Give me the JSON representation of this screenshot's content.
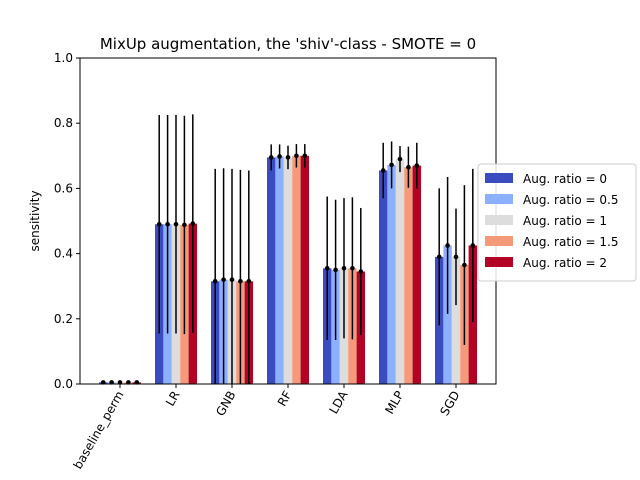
{
  "chart_data": {
    "type": "bar",
    "title": "MixUp augmentation, the 'shiv'-class - SMOTE = 0",
    "xlabel": "",
    "ylabel": "sensitivity",
    "ylim": [
      0,
      1.0
    ],
    "yticks": [
      "0.0",
      "0.2",
      "0.4",
      "0.6",
      "0.8",
      "1.0"
    ],
    "grid": false,
    "legend_position": "right (outside plot)",
    "categories": [
      "baseline_perm",
      "LR",
      "GNB",
      "RF",
      "LDA",
      "MLP",
      "SGD"
    ],
    "series": [
      {
        "name": "Aug. ratio = 0",
        "color": "#3b4cc0",
        "values": [
          0.005,
          0.49,
          0.315,
          0.695,
          0.355,
          0.655,
          0.39
        ],
        "errors": [
          0.002,
          0.335,
          0.345,
          0.04,
          0.22,
          0.085,
          0.21
        ]
      },
      {
        "name": "Aug. ratio = 0.5",
        "color": "#8db0fe",
        "values": [
          0.005,
          0.49,
          0.32,
          0.698,
          0.35,
          0.672,
          0.425
        ],
        "errors": [
          0.002,
          0.335,
          0.342,
          0.037,
          0.215,
          0.072,
          0.21
        ]
      },
      {
        "name": "Aug. ratio = 1",
        "color": "#dddddd",
        "values": [
          0.005,
          0.49,
          0.32,
          0.695,
          0.355,
          0.69,
          0.39
        ],
        "errors": [
          0.002,
          0.335,
          0.34,
          0.036,
          0.215,
          0.04,
          0.148
        ]
      },
      {
        "name": "Aug. ratio = 1.5",
        "color": "#f49a7b",
        "values": [
          0.005,
          0.488,
          0.315,
          0.7,
          0.355,
          0.665,
          0.365
        ],
        "errors": [
          0.002,
          0.335,
          0.342,
          0.036,
          0.218,
          0.063,
          0.245
        ]
      },
      {
        "name": "Aug. ratio = 2",
        "color": "#b40426",
        "values": [
          0.005,
          0.492,
          0.315,
          0.7,
          0.345,
          0.67,
          0.425
        ],
        "errors": [
          0.002,
          0.335,
          0.34,
          0.036,
          0.195,
          0.07,
          0.235
        ]
      }
    ]
  }
}
